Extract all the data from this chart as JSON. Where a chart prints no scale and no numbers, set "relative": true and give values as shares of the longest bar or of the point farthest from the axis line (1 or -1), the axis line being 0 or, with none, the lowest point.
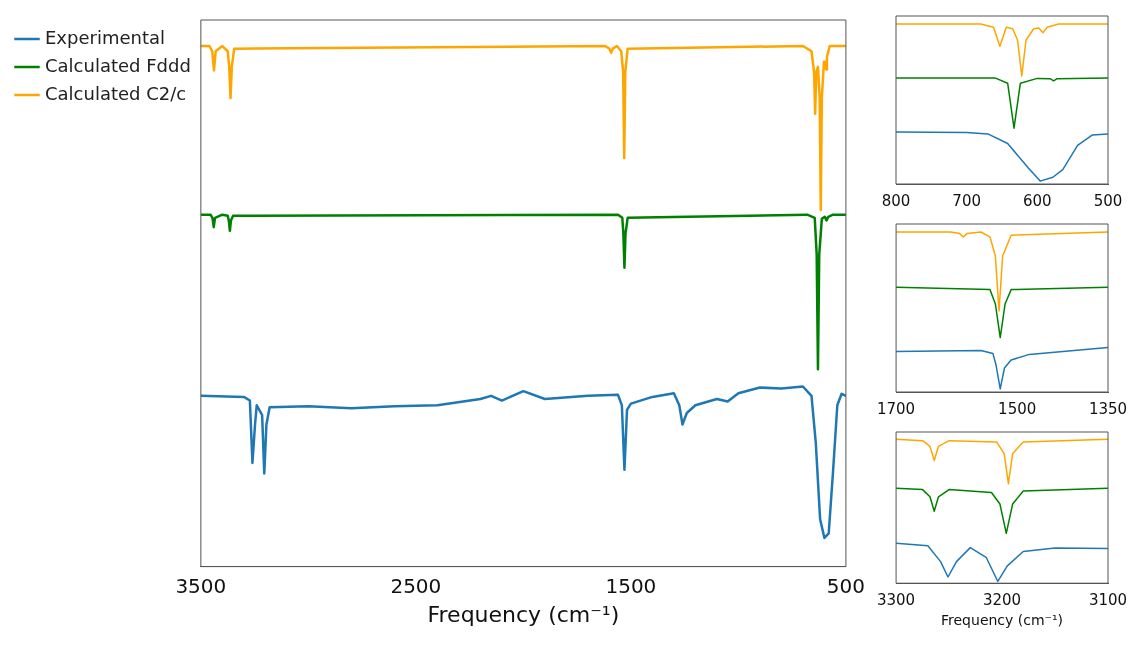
{
  "chart_data": [
    {
      "type": "line",
      "relative": true,
      "xlim": [
        3500,
        500
      ],
      "xticks": [
        3500,
        2500,
        1500,
        500
      ],
      "xlabel": "Frequency (cm⁻¹)",
      "tick_labels": "x",
      "legend": "left",
      "series": [
        {
          "name": "Experimental",
          "color": "#1f77b4",
          "x": [
            3500,
            3300,
            3272,
            3260,
            3248,
            3240,
            3215,
            3205,
            3195,
            3180,
            3000,
            2800,
            2600,
            2400,
            2200,
            2150,
            2100,
            2000,
            1900,
            1700,
            1560,
            1542,
            1530,
            1518,
            1500,
            1400,
            1300,
            1275,
            1260,
            1240,
            1200,
            1100,
            1050,
            1000,
            900,
            800,
            700,
            660,
            640,
            620,
            600,
            580,
            560,
            540,
            520,
            500
          ],
          "values": [
            0.328,
            0.326,
            0.319,
            0.199,
            0.273,
            0.31,
            0.291,
            0.179,
            0.273,
            0.306,
            0.308,
            0.304,
            0.308,
            0.31,
            0.322,
            0.328,
            0.319,
            0.337,
            0.322,
            0.328,
            0.33,
            0.31,
            0.186,
            0.301,
            0.313,
            0.326,
            0.333,
            0.31,
            0.273,
            0.295,
            0.31,
            0.322,
            0.317,
            0.333,
            0.344,
            0.342,
            0.346,
            0.328,
            0.237,
            0.091,
            0.055,
            0.064,
            0.182,
            0.31,
            0.332,
            0.328
          ]
        },
        {
          "name": "Calculated Fddd",
          "color": "#008000",
          "x": [
            3500,
            3455,
            3446,
            3440,
            3434,
            3400,
            3375,
            3370,
            3365,
            3360,
            3350,
            1560,
            1540,
            1535,
            1530,
            1525,
            1515,
            680,
            645,
            636,
            630,
            624,
            612,
            598,
            590,
            582,
            560,
            500
          ],
          "values": [
            0.676,
            0.676,
            0.67,
            0.652,
            0.67,
            0.676,
            0.674,
            0.665,
            0.645,
            0.665,
            0.674,
            0.676,
            0.67,
            0.64,
            0.574,
            0.64,
            0.67,
            0.676,
            0.67,
            0.6,
            0.379,
            0.6,
            0.668,
            0.672,
            0.665,
            0.672,
            0.676,
            0.676
          ]
        },
        {
          "name": "Calculated C2/c",
          "color": "#ffa500",
          "x": [
            3500,
            3460,
            3447,
            3439,
            3431,
            3400,
            3375,
            3368,
            3362,
            3356,
            3345,
            1620,
            1600,
            1592,
            1584,
            1565,
            1545,
            1536,
            1531,
            1526,
            1515,
            700,
            660,
            648,
            643,
            638,
            630,
            622,
            617,
            612,
            602,
            596,
            592,
            588,
            575,
            500
          ],
          "values": [
            1,
            1,
            0.99,
            0.953,
            0.99,
            1,
            0.99,
            0.96,
            0.9,
            0.96,
            0.995,
            1,
            0.995,
            0.987,
            0.995,
            1,
            0.99,
            0.95,
            0.785,
            0.95,
            0.995,
            1,
            0.99,
            0.95,
            0.87,
            0.95,
            0.96,
            0.9,
            0.685,
            0.9,
            0.97,
            0.97,
            0.955,
            0.98,
            1,
            1
          ]
        }
      ]
    },
    {
      "type": "line",
      "relative": true,
      "xlim": [
        800,
        500
      ],
      "xticks": [
        800,
        700,
        600,
        500
      ],
      "tick_labels": "x",
      "series": [
        {
          "color": "#1f77b4",
          "x": [
            800,
            700,
            670,
            642,
            613,
            596,
            578,
            564,
            543,
            522,
            500
          ],
          "values": [
            0.325,
            0.322,
            0.313,
            0.253,
            0.102,
            0.018,
            0.042,
            0.09,
            0.241,
            0.307,
            0.313
          ]
        },
        {
          "color": "#008000",
          "x": [
            800,
            660,
            642,
            633,
            624,
            600,
            582,
            577,
            572,
            500
          ],
          "values": [
            0.663,
            0.663,
            0.63,
            0.349,
            0.63,
            0.66,
            0.658,
            0.645,
            0.658,
            0.663
          ]
        },
        {
          "color": "#ffa500",
          "x": [
            800,
            680,
            662,
            653,
            644,
            635,
            628,
            622,
            616,
            605,
            598,
            592,
            586,
            570,
            500
          ],
          "values": [
            1,
            1,
            0.98,
            0.861,
            0.98,
            0.97,
            0.9,
            0.675,
            0.9,
            0.97,
            0.975,
            0.946,
            0.98,
            1,
            1
          ]
        }
      ]
    },
    {
      "type": "line",
      "relative": true,
      "xlim": [
        1700,
        1350
      ],
      "xticks": [
        1700,
        1500,
        1350
      ],
      "tick_labels": "x",
      "series": [
        {
          "color": "#1f77b4",
          "x": [
            1700,
            1560,
            1540,
            1535,
            1528,
            1521,
            1510,
            1480,
            1350
          ],
          "values": [
            0.253,
            0.259,
            0.24,
            0.17,
            0.019,
            0.15,
            0.2,
            0.235,
            0.278
          ]
        },
        {
          "color": "#008000",
          "x": [
            1700,
            1545,
            1536,
            1528,
            1520,
            1510,
            1350
          ],
          "values": [
            0.654,
            0.64,
            0.55,
            0.34,
            0.55,
            0.64,
            0.654
          ]
        },
        {
          "color": "#ffa500",
          "x": [
            1700,
            1610,
            1595,
            1589,
            1583,
            1560,
            1545,
            1536,
            1530,
            1524,
            1510,
            1350
          ],
          "values": [
            1,
            1,
            0.99,
            0.969,
            0.99,
            1,
            0.97,
            0.85,
            0.506,
            0.85,
            0.98,
            1
          ]
        }
      ]
    },
    {
      "type": "line",
      "relative": true,
      "xlim": [
        3300,
        3100
      ],
      "xticks": [
        3300,
        3200,
        3100
      ],
      "xlabel": "Frequency (cm⁻¹)",
      "tick_labels": "x",
      "series": [
        {
          "color": "#1f77b4",
          "x": [
            3300,
            3270,
            3258,
            3251,
            3243,
            3230,
            3215,
            3204,
            3195,
            3180,
            3150,
            3100
          ],
          "values": [
            0.278,
            0.26,
            0.15,
            0.043,
            0.15,
            0.247,
            0.18,
            0.012,
            0.12,
            0.22,
            0.245,
            0.241
          ]
        },
        {
          "color": "#008000",
          "x": [
            3300,
            3275,
            3268,
            3264,
            3260,
            3250,
            3210,
            3202,
            3196,
            3190,
            3180,
            3100
          ],
          "values": [
            0.66,
            0.65,
            0.6,
            0.5,
            0.6,
            0.65,
            0.63,
            0.55,
            0.346,
            0.55,
            0.64,
            0.66
          ]
        },
        {
          "color": "#ffa500",
          "x": [
            3300,
            3275,
            3268,
            3264,
            3260,
            3250,
            3205,
            3198,
            3194,
            3190,
            3180,
            3100
          ],
          "values": [
            1,
            0.99,
            0.95,
            0.852,
            0.95,
            0.99,
            0.98,
            0.9,
            0.691,
            0.9,
            0.98,
            1
          ]
        }
      ]
    }
  ]
}
